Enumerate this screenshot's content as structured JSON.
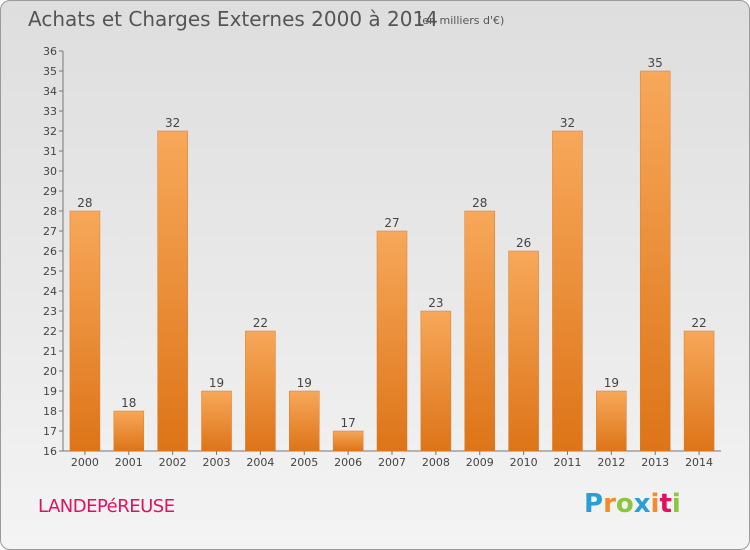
{
  "title": "Achats et Charges Externes 2000 à 2014",
  "subtitle": "(en milliers d'€)",
  "commune": "LANDEPéREUSE",
  "brand": {
    "letters": [
      "P",
      "r",
      "o",
      "x",
      "i",
      "t",
      "i"
    ],
    "colors": [
      "#2a9fd6",
      "#f28c28",
      "#8cc63f",
      "#2a9fd6",
      "#f28c28",
      "#e0115f",
      "#8cc63f"
    ]
  },
  "colors": {
    "bar_light": "#f7a85a",
    "bar_dark": "#dd7418",
    "commune": "#e0115f"
  },
  "chart_data": {
    "type": "bar",
    "categories": [
      "2000",
      "2001",
      "2002",
      "2003",
      "2004",
      "2005",
      "2006",
      "2007",
      "2008",
      "2009",
      "2010",
      "2011",
      "2012",
      "2013",
      "2014"
    ],
    "values": [
      28,
      18,
      32,
      19,
      22,
      19,
      17,
      27,
      23,
      28,
      26,
      32,
      19,
      35,
      22
    ],
    "ylim": [
      16,
      36
    ],
    "yticks": [
      16,
      17,
      18,
      19,
      20,
      21,
      22,
      23,
      24,
      25,
      26,
      27,
      28,
      29,
      30,
      31,
      32,
      33,
      34,
      35,
      36
    ],
    "grid": false,
    "data_labels": true
  }
}
